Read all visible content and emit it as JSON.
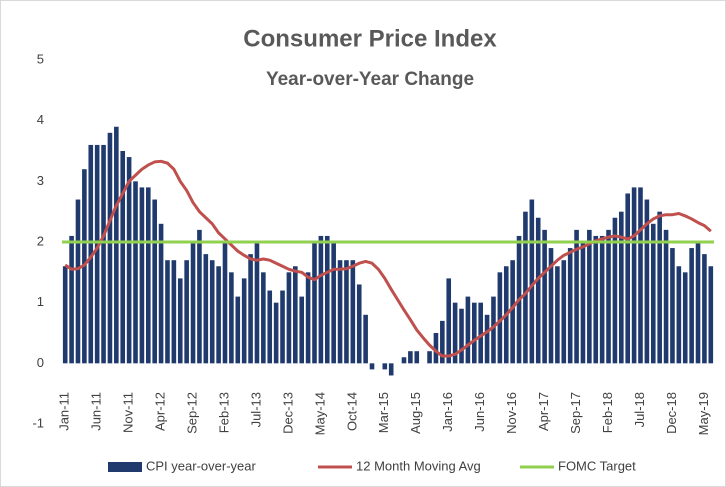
{
  "chart_data": {
    "type": "bar",
    "title": "Consumer Price Index",
    "subtitle": "Year-over-Year Change",
    "categories": [
      "Jan-11",
      null,
      null,
      null,
      null,
      "Jun-11",
      null,
      null,
      null,
      null,
      "Nov-11",
      null,
      null,
      null,
      null,
      "Apr-12",
      null,
      null,
      null,
      null,
      "Sep-12",
      null,
      null,
      null,
      null,
      "Feb-13",
      null,
      null,
      null,
      null,
      "Jul-13",
      null,
      null,
      null,
      null,
      "Dec-13",
      null,
      null,
      null,
      null,
      "May-14",
      null,
      null,
      null,
      null,
      "Oct-14",
      null,
      null,
      null,
      null,
      "Mar-15",
      null,
      null,
      null,
      null,
      "Aug-15",
      null,
      null,
      null,
      null,
      "Jan-16",
      null,
      null,
      null,
      null,
      "Jun-16",
      null,
      null,
      null,
      null,
      "Nov-16",
      null,
      null,
      null,
      null,
      "Apr-17",
      null,
      null,
      null,
      null,
      "Sep-17",
      null,
      null,
      null,
      null,
      "Feb-18",
      null,
      null,
      null,
      null,
      "Jul-18",
      null,
      null,
      null,
      null,
      "Dec-18",
      null,
      null,
      null,
      null,
      "May-19",
      null
    ],
    "series": [
      {
        "name": "CPI year-over-year",
        "color": "#203a6e",
        "type": "bar",
        "values": [
          1.6,
          2.1,
          2.7,
          3.2,
          3.6,
          3.6,
          3.6,
          3.8,
          3.9,
          3.5,
          3.4,
          3.0,
          2.9,
          2.9,
          2.7,
          2.3,
          1.7,
          1.7,
          1.4,
          1.7,
          2.0,
          2.2,
          1.8,
          1.7,
          1.6,
          2.0,
          1.5,
          1.1,
          1.4,
          1.8,
          2.0,
          1.5,
          1.2,
          1.0,
          1.2,
          1.5,
          1.6,
          1.1,
          1.5,
          2.0,
          2.1,
          2.1,
          2.0,
          1.7,
          1.7,
          1.7,
          1.3,
          0.8,
          -0.1,
          0.0,
          -0.1,
          -0.2,
          0.0,
          0.1,
          0.2,
          0.2,
          0.0,
          0.2,
          0.5,
          0.7,
          1.4,
          1.0,
          0.9,
          1.1,
          1.0,
          1.0,
          0.8,
          1.1,
          1.5,
          1.6,
          1.7,
          2.1,
          2.5,
          2.7,
          2.4,
          2.2,
          1.9,
          1.6,
          1.7,
          1.9,
          2.2,
          2.0,
          2.2,
          2.1,
          2.1,
          2.2,
          2.4,
          2.5,
          2.8,
          2.9,
          2.9,
          2.7,
          2.3,
          2.5,
          2.2,
          1.9,
          1.6,
          1.5,
          1.9,
          2.0,
          1.8,
          1.6
        ]
      },
      {
        "name": "12 Month Moving Avg",
        "color": "#c0504d",
        "type": "line",
        "values": [
          1.62,
          1.55,
          1.56,
          1.62,
          1.75,
          1.9,
          2.1,
          2.35,
          2.6,
          2.8,
          3.0,
          3.1,
          3.2,
          3.27,
          3.32,
          3.33,
          3.3,
          3.2,
          3.0,
          2.85,
          2.65,
          2.5,
          2.4,
          2.3,
          2.15,
          2.05,
          1.95,
          1.85,
          1.78,
          1.72,
          1.7,
          1.72,
          1.7,
          1.65,
          1.6,
          1.55,
          1.52,
          1.5,
          1.42,
          1.38,
          1.45,
          1.5,
          1.55,
          1.55,
          1.56,
          1.6,
          1.65,
          1.68,
          1.65,
          1.55,
          1.4,
          1.22,
          1.05,
          0.88,
          0.72,
          0.55,
          0.42,
          0.3,
          0.2,
          0.12,
          0.12,
          0.15,
          0.22,
          0.3,
          0.38,
          0.45,
          0.52,
          0.6,
          0.7,
          0.8,
          0.92,
          1.05,
          1.15,
          1.28,
          1.4,
          1.5,
          1.6,
          1.7,
          1.78,
          1.83,
          1.88,
          1.92,
          1.97,
          2.02,
          2.05,
          2.08,
          2.1,
          2.08,
          2.05,
          2.1,
          2.2,
          2.3,
          2.38,
          2.43,
          2.45,
          2.45,
          2.47,
          2.43,
          2.38,
          2.32,
          2.27,
          2.18
        ]
      },
      {
        "name": "FOMC Target",
        "color": "#92d050",
        "type": "hline",
        "value": 2
      }
    ],
    "ylim": [
      -1,
      5
    ],
    "yticks": [
      -1,
      0,
      1,
      2,
      3,
      4,
      5
    ],
    "grid": false,
    "legend": "bottom"
  }
}
